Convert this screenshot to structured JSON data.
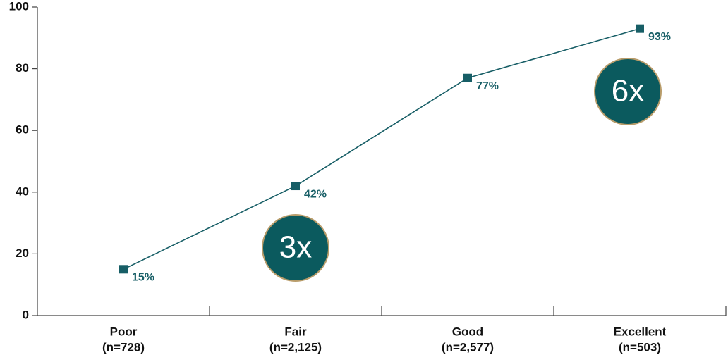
{
  "chart_data": {
    "type": "line",
    "categories": [
      "Poor",
      "Fair",
      "Good",
      "Excellent"
    ],
    "category_counts": [
      "(n=728)",
      "(n=2,125)",
      "(n=2,577)",
      "(n=503)"
    ],
    "series": [
      {
        "color": "#175e66",
        "values": [
          15,
          42,
          77,
          93
        ],
        "value_labels": [
          "15%",
          "42%",
          "77%",
          "93%"
        ]
      }
    ],
    "ylim": [
      0,
      100
    ],
    "yticks": [
      0,
      20,
      40,
      60,
      80,
      100
    ],
    "annotations": [
      "3x",
      "6x"
    ]
  }
}
